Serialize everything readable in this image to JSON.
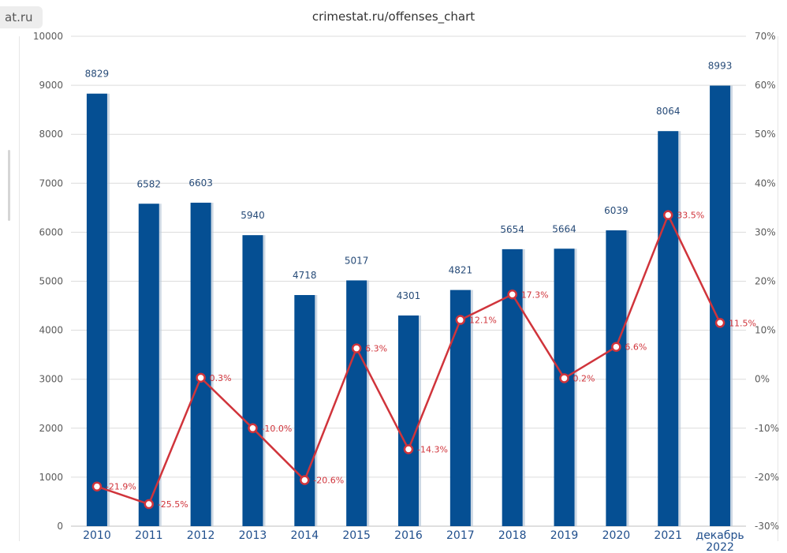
{
  "header": {
    "url_fragment": "at.ru"
  },
  "chart_data": {
    "type": "bar",
    "title": "crimestat.ru/offenses_chart",
    "categories": [
      "2010",
      "2011",
      "2012",
      "2013",
      "2014",
      "2015",
      "2016",
      "2017",
      "2018",
      "2019",
      "2020",
      "2021",
      "декабрь\n2022"
    ],
    "series": [
      {
        "type": "bar",
        "color": "#054f93",
        "values": [
          8829,
          6582,
          6603,
          5940,
          4718,
          5017,
          4301,
          4821,
          5654,
          5664,
          6039,
          8064,
          8993
        ],
        "labels": [
          "8829",
          "6582",
          "6603",
          "5940",
          "4718",
          "5017",
          "4301",
          "4821",
          "5654",
          "5664",
          "6039",
          "8064",
          "8993"
        ]
      },
      {
        "type": "line",
        "axis": "right",
        "color": "#d0343b",
        "values": [
          -21.9,
          -25.5,
          0.3,
          -10.0,
          -20.6,
          6.3,
          -14.3,
          12.1,
          17.3,
          0.2,
          6.6,
          33.5,
          11.5
        ],
        "labels": [
          "-21.9%",
          "-25.5%",
          "0.3%",
          "-10.0%",
          "-20.6%",
          "6.3%",
          "-14.3%",
          "12.1%",
          "17.3%",
          "0.2%",
          "6.6%",
          "33.5%",
          "11.5%"
        ]
      }
    ],
    "y_left": {
      "ylim": [
        0,
        10000
      ],
      "ticks": [
        "0",
        "1000",
        "2000",
        "3000",
        "4000",
        "5000",
        "6000",
        "7000",
        "8000",
        "9000",
        "10000"
      ]
    },
    "y_right": {
      "ylim": [
        -30,
        70
      ],
      "ticks": [
        "-30%",
        "-20%",
        "-10%",
        "0%",
        "10%",
        "20%",
        "30%",
        "40%",
        "50%",
        "60%",
        "70%"
      ]
    },
    "grid": true,
    "legend": "none"
  }
}
